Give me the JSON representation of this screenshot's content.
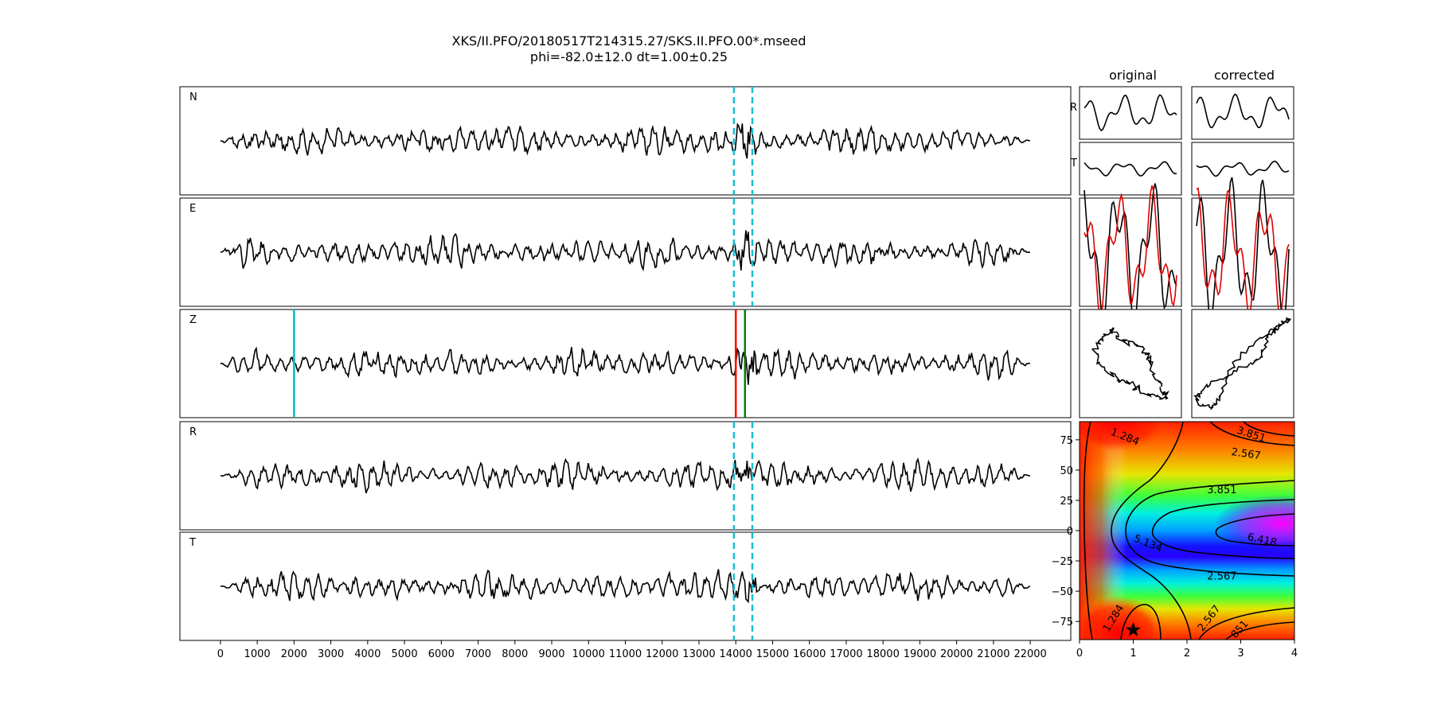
{
  "title": {
    "line1": "XKS/II.PFO/20180517T214315.27/SKS.II.PFO.00*.mseed",
    "line2": "phi=-82.0±12.0 dt=1.00±0.25"
  },
  "chart_data": [
    {
      "type": "line",
      "id": "seismograms",
      "channels": [
        "N",
        "E",
        "Z",
        "R",
        "T"
      ],
      "x_ticks": [
        0,
        1000,
        2000,
        3000,
        4000,
        5000,
        6000,
        7000,
        8000,
        9000,
        10000,
        11000,
        12000,
        13000,
        14000,
        15000,
        16000,
        17000,
        18000,
        19000,
        20000,
        21000,
        22000
      ],
      "x_tick_labels": [
        "0",
        "1000",
        "2000",
        "3000",
        "4000",
        "5000",
        "6000",
        "7000",
        "8000",
        "9000",
        "10000",
        "11000",
        "12000",
        "13000",
        "14000",
        "15000",
        "16000",
        "17000",
        "18000",
        "19000",
        "20000",
        "21000",
        "22000"
      ],
      "xlim": [
        -1100,
        23100
      ],
      "window": {
        "start": 13950,
        "end": 14450,
        "color": "#17becf",
        "channels": [
          "N",
          "E",
          "R",
          "T"
        ]
      },
      "z_markers": [
        {
          "x": 2000,
          "color": "#00bfbf"
        },
        {
          "x": 14000,
          "color": "#ff0000"
        },
        {
          "x": 14250,
          "color": "#008000"
        }
      ],
      "trace_start": 0,
      "trace_end": 22000
    },
    {
      "type": "line",
      "id": "waveform-insets",
      "column_titles": [
        "original",
        "corrected"
      ],
      "row_labels": [
        "R",
        "T"
      ]
    },
    {
      "type": "heatmap",
      "id": "error-surface",
      "xlim": [
        0,
        4
      ],
      "ylim": [
        -90,
        90
      ],
      "x_ticks": [
        0,
        1,
        2,
        3,
        4
      ],
      "x_tick_labels": [
        "0",
        "1",
        "2",
        "3",
        "4"
      ],
      "y_ticks": [
        75,
        50,
        25,
        0,
        -25,
        -50,
        -75
      ],
      "y_tick_labels": [
        "75",
        "50",
        "25",
        "0",
        "−25",
        "−50",
        "−75"
      ],
      "contour_labels": [
        {
          "text": "1.284",
          "x": 0.85,
          "y": 78,
          "angle": 22
        },
        {
          "text": "3.851",
          "x": 3.2,
          "y": 80,
          "angle": 18
        },
        {
          "text": "2.567",
          "x": 3.1,
          "y": 64,
          "angle": 8
        },
        {
          "text": "3.851",
          "x": 2.65,
          "y": 34,
          "angle": 0
        },
        {
          "text": "5.134",
          "x": 1.28,
          "y": -10,
          "angle": 22
        },
        {
          "text": "6.418",
          "x": 3.4,
          "y": -7,
          "angle": 12
        },
        {
          "text": "2.567",
          "x": 2.65,
          "y": -37,
          "angle": 0
        },
        {
          "text": "1.284",
          "x": 0.62,
          "y": -72,
          "angle": -58
        },
        {
          "text": "2.567",
          "x": 2.4,
          "y": -72,
          "angle": -52
        },
        {
          "text": "851",
          "x": 2.97,
          "y": -81,
          "angle": -48
        }
      ],
      "best_fit": {
        "dt": 1.0,
        "phi": -82.0
      },
      "colormap": "hsv"
    }
  ]
}
